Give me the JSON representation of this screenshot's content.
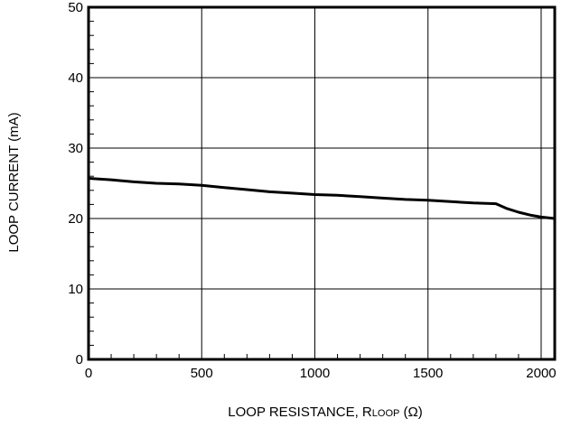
{
  "chart_data": {
    "type": "line",
    "title": "",
    "xlabel": "LOOP RESISTANCE, RLOOP (Ω)",
    "xlabel_parts": {
      "prefix": "LOOP RESISTANCE, R",
      "subscript": "LOOP",
      "suffix": " (Ω)"
    },
    "ylabel": "LOOP CURRENT (mA)",
    "xlim": [
      0,
      2060
    ],
    "ylim": [
      0,
      50
    ],
    "x_ticks": [
      0,
      500,
      1000,
      1500,
      2000
    ],
    "y_ticks": [
      0,
      10,
      20,
      30,
      40,
      50
    ],
    "x_tick_labels": [
      "0",
      "500",
      "1000",
      "1500",
      "2000"
    ],
    "y_tick_labels": [
      "0",
      "10",
      "20",
      "30",
      "40",
      "50"
    ],
    "grid": true,
    "series": [
      {
        "color": "#000000",
        "x": [
          0,
          100,
          200,
          300,
          400,
          500,
          600,
          700,
          800,
          900,
          1000,
          1100,
          1200,
          1300,
          1400,
          1500,
          1600,
          1700,
          1800,
          1850,
          1900,
          1950,
          2000,
          2060
        ],
        "y": [
          25.7,
          25.5,
          25.2,
          25.0,
          24.9,
          24.7,
          24.4,
          24.1,
          23.8,
          23.6,
          23.4,
          23.3,
          23.1,
          22.9,
          22.7,
          22.6,
          22.4,
          22.2,
          22.1,
          21.4,
          20.9,
          20.5,
          20.2,
          20.0
        ]
      }
    ]
  }
}
